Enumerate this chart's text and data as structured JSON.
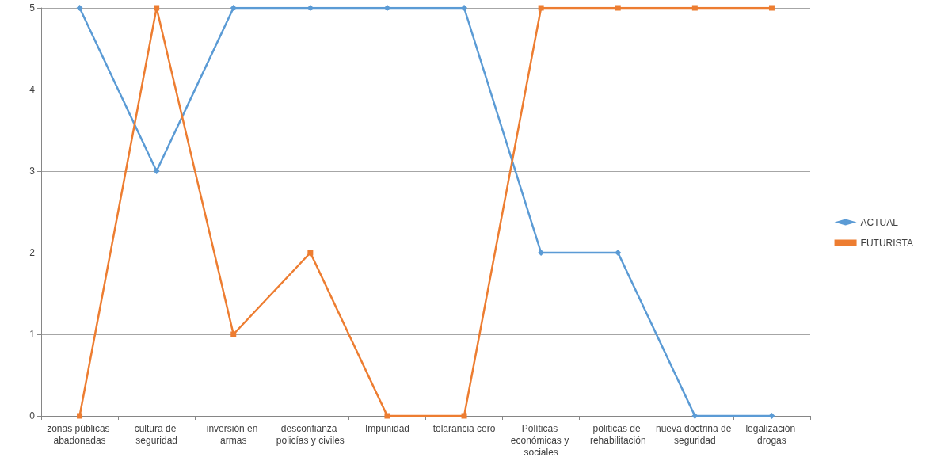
{
  "chart_data": {
    "type": "line",
    "categories": [
      "zonas públicas abadonadas",
      "cultura de seguridad",
      "inversión en armas",
      "desconfianza policías y civiles",
      "Impunidad",
      "tolarancia cero",
      "Políticas económicas y sociales",
      "politicas de rehabilitación",
      "nueva doctrina de seguridad",
      "legalización drogas"
    ],
    "series": [
      {
        "name": "ACTUAL",
        "color": "#5b9bd5",
        "marker": "diamond",
        "values": [
          5,
          3,
          5,
          5,
          5,
          5,
          2,
          2,
          0,
          0
        ]
      },
      {
        "name": "FUTURISTA",
        "color": "#ed7d31",
        "marker": "square",
        "values": [
          0,
          5,
          1,
          2,
          0,
          0,
          5,
          5,
          5,
          5
        ]
      }
    ],
    "ylim": [
      0,
      5
    ],
    "yticks": [
      0,
      1,
      2,
      3,
      4,
      5
    ],
    "grid": "y",
    "legend": "right",
    "line_style": "solid"
  }
}
